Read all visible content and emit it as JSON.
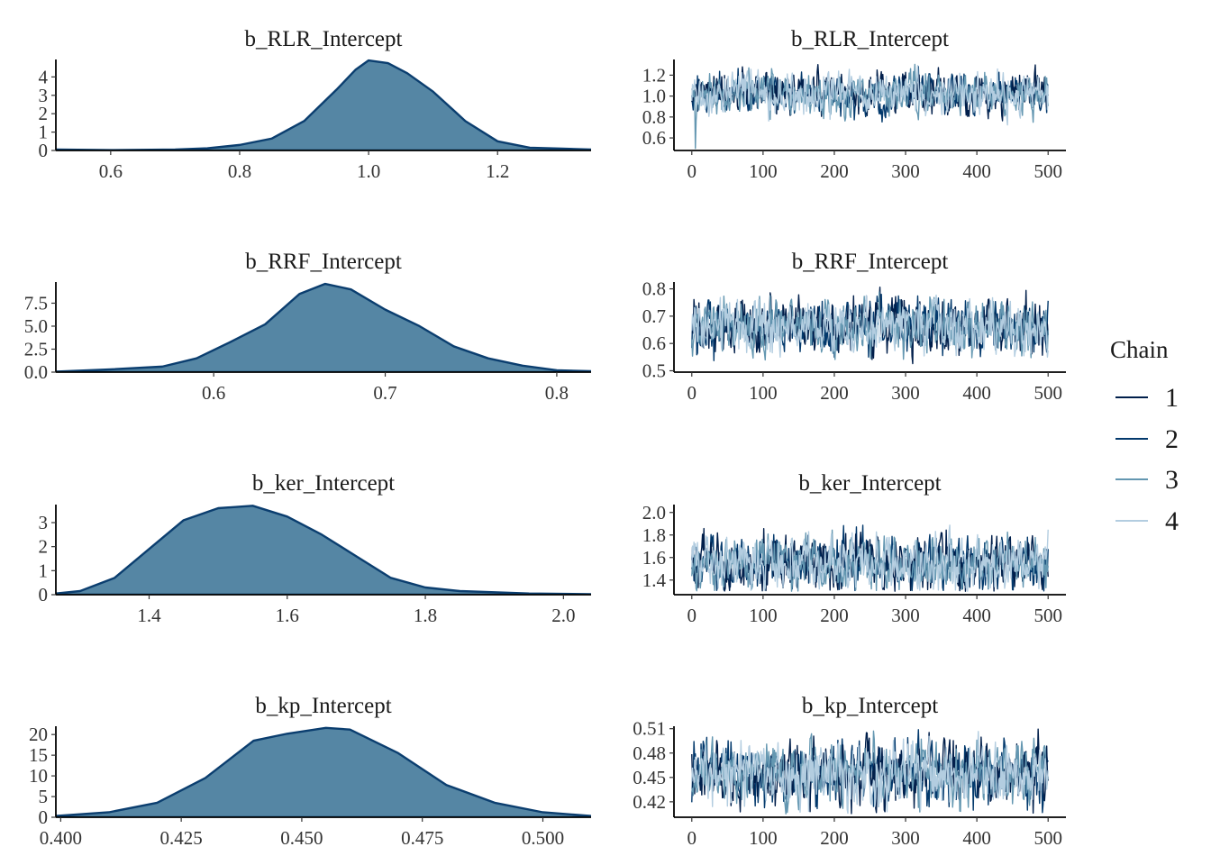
{
  "colors": {
    "density_fill": "#5586a4",
    "density_line": "#0b3e6f",
    "chains": [
      "#011f4b",
      "#03396c",
      "#6497b1",
      "#b3cde0"
    ]
  },
  "legend": {
    "title": "Chain",
    "items": [
      {
        "label": "1",
        "color": "#011f4b"
      },
      {
        "label": "2",
        "color": "#03396c"
      },
      {
        "label": "3",
        "color": "#6497b1"
      },
      {
        "label": "4",
        "color": "#b3cde0"
      }
    ]
  },
  "chart_data": [
    {
      "type": "area",
      "title": "b_RLR_Intercept",
      "xlim": [
        0.515,
        1.345
      ],
      "ylim": [
        0,
        4.95
      ],
      "xticks": [
        {
          "v": 0.6,
          "label": "0.6"
        },
        {
          "v": 0.8,
          "label": "0.8"
        },
        {
          "v": 1.0,
          "label": "1.0"
        },
        {
          "v": 1.2,
          "label": "1.2"
        }
      ],
      "yticks": [
        {
          "v": 0,
          "label": "0"
        },
        {
          "v": 1,
          "label": "1"
        },
        {
          "v": 2,
          "label": "2"
        },
        {
          "v": 3,
          "label": "3"
        },
        {
          "v": 4,
          "label": "4"
        }
      ],
      "x": [
        0.515,
        0.6,
        0.7,
        0.75,
        0.8,
        0.85,
        0.9,
        0.95,
        0.98,
        1.0,
        1.03,
        1.06,
        1.1,
        1.15,
        1.2,
        1.25,
        1.3,
        1.345
      ],
      "y": [
        0.05,
        0.02,
        0.05,
        0.12,
        0.3,
        0.65,
        1.6,
        3.3,
        4.4,
        4.9,
        4.75,
        4.2,
        3.2,
        1.6,
        0.5,
        0.15,
        0.1,
        0.05
      ]
    },
    {
      "type": "line",
      "title": "b_RLR_Intercept",
      "xlim": [
        -25,
        525
      ],
      "ylim": [
        0.48,
        1.35
      ],
      "xticks": [
        {
          "v": 0,
          "label": "0"
        },
        {
          "v": 100,
          "label": "100"
        },
        {
          "v": 200,
          "label": "200"
        },
        {
          "v": 300,
          "label": "300"
        },
        {
          "v": 400,
          "label": "400"
        },
        {
          "v": 500,
          "label": "500"
        }
      ],
      "yticks": [
        {
          "v": 0.6,
          "label": "0.6"
        },
        {
          "v": 0.8,
          "label": "0.8"
        },
        {
          "v": 1.0,
          "label": "1.0"
        },
        {
          "v": 1.2,
          "label": "1.2"
        }
      ],
      "iterations": 500,
      "center": 1.02,
      "spread": 0.09,
      "min": 0.5,
      "max": 1.34,
      "seed": 11
    },
    {
      "type": "area",
      "title": "b_RRF_Intercept",
      "xlim": [
        0.508,
        0.82
      ],
      "ylim": [
        0,
        9.8
      ],
      "xticks": [
        {
          "v": 0.6,
          "label": "0.6"
        },
        {
          "v": 0.7,
          "label": "0.7"
        },
        {
          "v": 0.8,
          "label": "0.8"
        }
      ],
      "yticks": [
        {
          "v": 0,
          "label": "0.0"
        },
        {
          "v": 2.5,
          "label": "2.5"
        },
        {
          "v": 5.0,
          "label": "5.0"
        },
        {
          "v": 7.5,
          "label": "7.5"
        }
      ],
      "x": [
        0.508,
        0.54,
        0.57,
        0.59,
        0.61,
        0.63,
        0.65,
        0.665,
        0.68,
        0.7,
        0.72,
        0.74,
        0.76,
        0.78,
        0.8,
        0.82
      ],
      "y": [
        0.05,
        0.3,
        0.6,
        1.5,
        3.3,
        5.2,
        8.5,
        9.6,
        9.0,
        6.8,
        5.0,
        2.8,
        1.5,
        0.7,
        0.2,
        0.1
      ]
    },
    {
      "type": "line",
      "title": "b_RRF_Intercept",
      "xlim": [
        -25,
        525
      ],
      "ylim": [
        0.495,
        0.825
      ],
      "xticks": [
        {
          "v": 0,
          "label": "0"
        },
        {
          "v": 100,
          "label": "100"
        },
        {
          "v": 200,
          "label": "200"
        },
        {
          "v": 300,
          "label": "300"
        },
        {
          "v": 400,
          "label": "400"
        },
        {
          "v": 500,
          "label": "500"
        }
      ],
      "yticks": [
        {
          "v": 0.5,
          "label": "0.5"
        },
        {
          "v": 0.6,
          "label": "0.6"
        },
        {
          "v": 0.7,
          "label": "0.7"
        },
        {
          "v": 0.8,
          "label": "0.8"
        }
      ],
      "iterations": 500,
      "center": 0.665,
      "spread": 0.045,
      "min": 0.51,
      "max": 0.81,
      "seed": 23
    },
    {
      "type": "area",
      "title": "b_ker_Intercept",
      "xlim": [
        1.265,
        2.04
      ],
      "ylim": [
        0,
        3.75
      ],
      "xticks": [
        {
          "v": 1.4,
          "label": "1.4"
        },
        {
          "v": 1.6,
          "label": "1.6"
        },
        {
          "v": 1.8,
          "label": "1.8"
        },
        {
          "v": 2.0,
          "label": "2.0"
        }
      ],
      "yticks": [
        {
          "v": 0,
          "label": "0"
        },
        {
          "v": 1,
          "label": "1"
        },
        {
          "v": 2,
          "label": "2"
        },
        {
          "v": 3,
          "label": "3"
        }
      ],
      "x": [
        1.265,
        1.3,
        1.35,
        1.4,
        1.45,
        1.5,
        1.55,
        1.6,
        1.65,
        1.7,
        1.75,
        1.8,
        1.85,
        1.9,
        1.95,
        2.04
      ],
      "y": [
        0.05,
        0.15,
        0.7,
        1.9,
        3.1,
        3.6,
        3.7,
        3.25,
        2.5,
        1.6,
        0.7,
        0.3,
        0.15,
        0.1,
        0.05,
        0.02
      ]
    },
    {
      "type": "line",
      "title": "b_ker_Intercept",
      "xlim": [
        -25,
        525
      ],
      "ylim": [
        1.27,
        2.07
      ],
      "xticks": [
        {
          "v": 0,
          "label": "0"
        },
        {
          "v": 100,
          "label": "100"
        },
        {
          "v": 200,
          "label": "200"
        },
        {
          "v": 300,
          "label": "300"
        },
        {
          "v": 400,
          "label": "400"
        },
        {
          "v": 500,
          "label": "500"
        }
      ],
      "yticks": [
        {
          "v": 1.4,
          "label": "1.4"
        },
        {
          "v": 1.6,
          "label": "1.6"
        },
        {
          "v": 1.8,
          "label": "1.8"
        },
        {
          "v": 2.0,
          "label": "2.0"
        }
      ],
      "iterations": 500,
      "center": 1.55,
      "spread": 0.11,
      "min": 1.3,
      "max": 2.04,
      "seed": 37
    },
    {
      "type": "area",
      "title": "b_kp_Intercept",
      "xlim": [
        0.399,
        0.51
      ],
      "ylim": [
        0,
        22
      ],
      "xticks": [
        {
          "v": 0.4,
          "label": "0.400"
        },
        {
          "v": 0.425,
          "label": "0.425"
        },
        {
          "v": 0.45,
          "label": "0.450"
        },
        {
          "v": 0.475,
          "label": "0.475"
        },
        {
          "v": 0.5,
          "label": "0.500"
        }
      ],
      "yticks": [
        {
          "v": 0,
          "label": "0"
        },
        {
          "v": 5,
          "label": "5"
        },
        {
          "v": 10,
          "label": "10"
        },
        {
          "v": 15,
          "label": "15"
        },
        {
          "v": 20,
          "label": "20"
        }
      ],
      "x": [
        0.399,
        0.41,
        0.42,
        0.43,
        0.44,
        0.447,
        0.455,
        0.46,
        0.47,
        0.48,
        0.49,
        0.5,
        0.51
      ],
      "y": [
        0.3,
        1.2,
        3.5,
        9.5,
        18.5,
        20.2,
        21.6,
        21.2,
        15.5,
        7.8,
        3.5,
        1.2,
        0.3
      ]
    },
    {
      "type": "line",
      "title": "b_kp_Intercept",
      "xlim": [
        -25,
        525
      ],
      "ylim": [
        0.401,
        0.513
      ],
      "xticks": [
        {
          "v": 0,
          "label": "0"
        },
        {
          "v": 100,
          "label": "100"
        },
        {
          "v": 200,
          "label": "200"
        },
        {
          "v": 300,
          "label": "300"
        },
        {
          "v": 400,
          "label": "400"
        },
        {
          "v": 500,
          "label": "500"
        }
      ],
      "yticks": [
        {
          "v": 0.42,
          "label": "0.42"
        },
        {
          "v": 0.45,
          "label": "0.45"
        },
        {
          "v": 0.48,
          "label": "0.48"
        },
        {
          "v": 0.51,
          "label": "0.51"
        }
      ],
      "iterations": 500,
      "center": 0.455,
      "spread": 0.018,
      "min": 0.405,
      "max": 0.51,
      "seed": 53
    }
  ]
}
